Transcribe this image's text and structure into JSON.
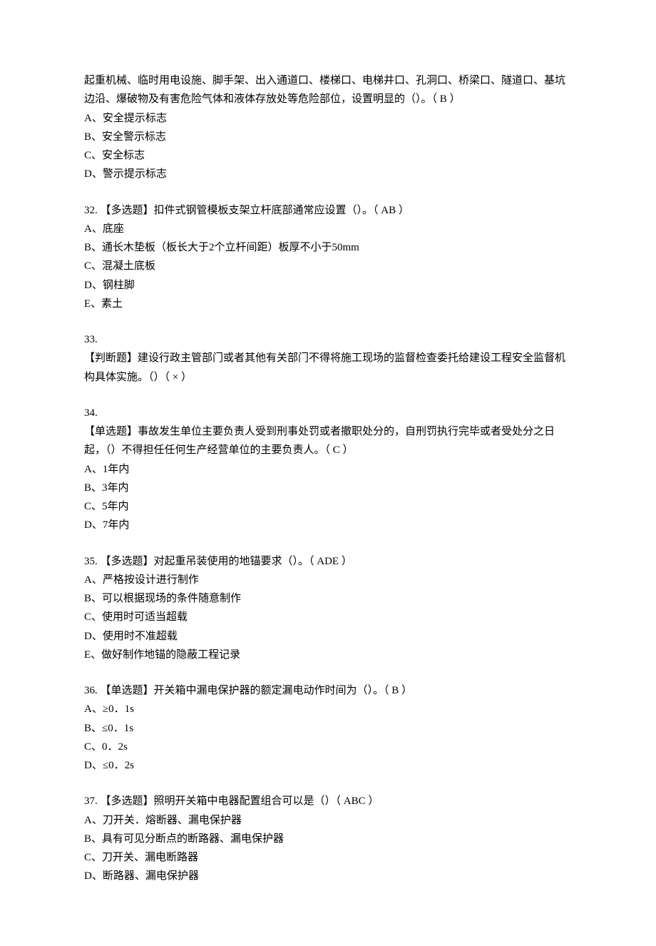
{
  "questions": [
    {
      "stem_lines": [
        "起重机械、临时用电设施、脚手架、出入通道口、楼梯口、电梯井口、孔洞口、桥梁口、隧道口、基坑边沿、爆破物及有害危险气体和液体存放处等危险部位，设置明显的（）。（  B  ）"
      ],
      "options": [
        "A、安全提示标志",
        "B、安全警示标志",
        "C、安全标志",
        "D、警示提示标志"
      ]
    },
    {
      "stem_lines": [
        "32. 【多选题】扣件式钢管模板支架立杆底部通常应设置（）。（  AB  ）"
      ],
      "options": [
        "A、底座",
        "B、通长木垫板（板长大于2个立杆间距）板厚不小于50mm",
        "C、混凝土底板",
        "D、钢柱脚",
        "E、素土"
      ]
    },
    {
      "stem_lines": [
        "33.",
        "【判断题】建设行政主管部门或者其他有关部门不得将施工现场的监督检查委托给建设工程安全监督机构具体实施。（）（  ×  ）"
      ],
      "options": []
    },
    {
      "stem_lines": [
        "34.",
        "【单选题】事故发生单位主要负责人受到刑事处罚或者撤职处分的，自刑罚执行完毕或者受处分之日起，（）不得担任任何生产经营单位的主要负责人。（  C  ）"
      ],
      "options": [
        "A、1年内",
        "B、3年内",
        "C、5年内",
        "D、7年内"
      ]
    },
    {
      "stem_lines": [
        "35. 【多选题】对起重吊装使用的地锚要求（）。（  ADE  ）"
      ],
      "options": [
        "A、严格按设计进行制作",
        "B、可以根据现场的条件随意制作",
        "C、使用时可适当超载",
        "D、使用时不准超载",
        "E、做好制作地锚的隐蔽工程记录"
      ]
    },
    {
      "stem_lines": [
        "36. 【单选题】开关箱中漏电保护器的额定漏电动作时间为（）。（  B  ）"
      ],
      "options": [
        "A、≥0．1s",
        "B、≤0．1s",
        "C、0．2s",
        "D、≤0．2s"
      ]
    },
    {
      "stem_lines": [
        "37. 【多选题】照明开关箱中电器配置组合可以是（）（  ABC  ）"
      ],
      "options": [
        "A、刀开关．熔断器、漏电保护器",
        "B、具有可见分断点的断路器、漏电保护器",
        "C、刀开关、漏电断路器",
        "D、断路器、漏电保护器"
      ]
    }
  ]
}
